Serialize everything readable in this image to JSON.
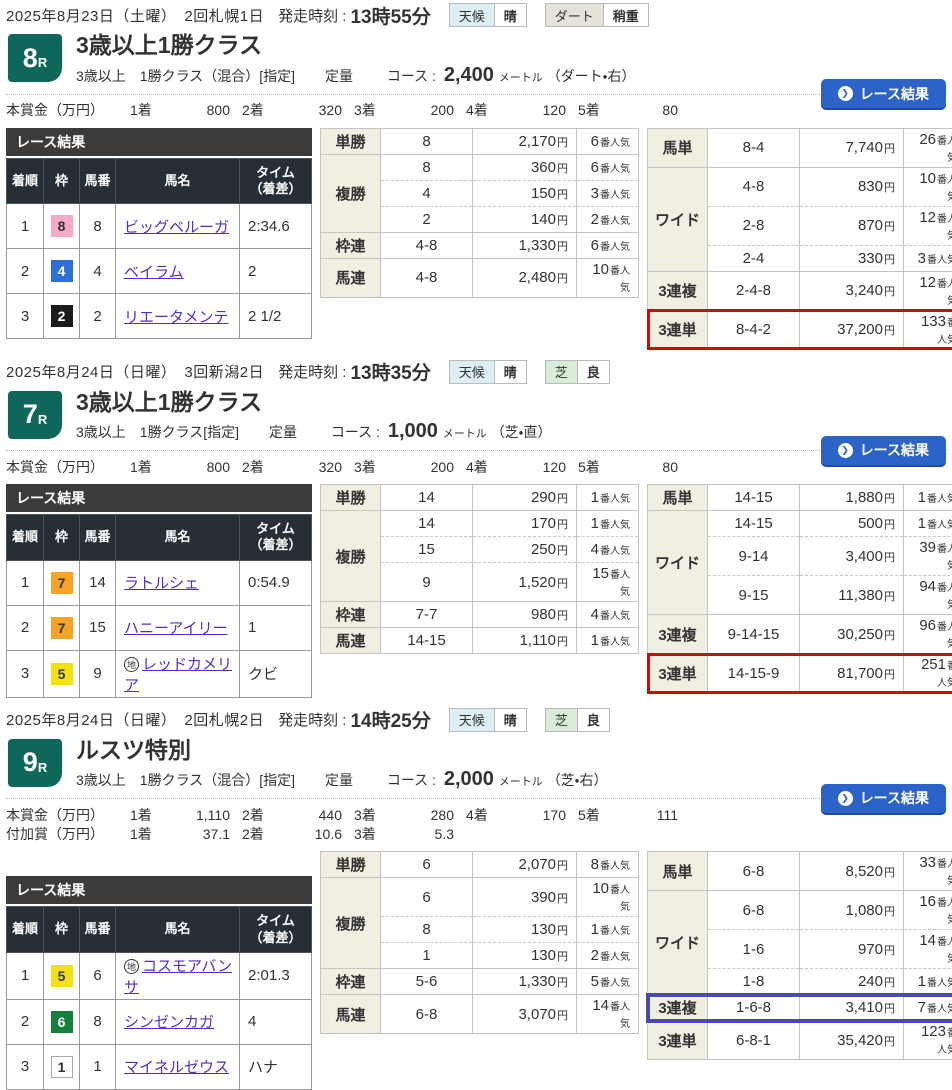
{
  "labels": {
    "start_time": "発走時刻 :",
    "weather": "天候",
    "course": "コース :",
    "results_caption": "レース結果",
    "results_button": "レース結果",
    "col_rank": "着順",
    "col_frame": "枠",
    "col_horse_no": "馬番",
    "col_horse": "馬名",
    "col_time_1": "タイム",
    "col_time_2": "（着差）",
    "yen": "円",
    "popularity": "番人気",
    "local_mark": "地"
  },
  "colors": {
    "button": "#2b63c8",
    "highlight_red": "#cf0a0a",
    "highlight_blue": "#4a4aad",
    "race_no_bg": "#0f665a",
    "link": "#5a2bbf",
    "frame_colors": {
      "1": {
        "bg": "#ffffff",
        "fg": "#333333",
        "border": "#aaaaaa"
      },
      "2": {
        "bg": "#1b1b1b",
        "fg": "#ffffff",
        "border": "#1b1b1b"
      },
      "4": {
        "bg": "#2e6fd6",
        "fg": "#ffffff",
        "border": "#2e6fd6"
      },
      "5": {
        "bg": "#f2e114",
        "fg": "#333333",
        "border": "#f2e114"
      },
      "6": {
        "bg": "#15803c",
        "fg": "#ffffff",
        "border": "#15803c"
      },
      "7": {
        "bg": "#f7a326",
        "fg": "#333333",
        "border": "#f7a326"
      },
      "8": {
        "bg": "#f6a9c8",
        "fg": "#333333",
        "border": "#f6a9c8"
      }
    }
  },
  "races": [
    {
      "date_line": "2025年8月23日（土曜）　2回札幌1日",
      "start_time": "13時55分",
      "weather": "晴",
      "surface": {
        "label": "ダート",
        "value": "稍重",
        "kind": "dirt"
      },
      "number": "8",
      "number_suffix": "R",
      "title": "3歳以上1勝クラス",
      "conditions": "3歳以上　1勝クラス（混合）[指定]",
      "weight_rule": "定量",
      "course": {
        "value": "2,400",
        "unit": "メートル",
        "detail": "（ダート・右）"
      },
      "prize_rows": [
        {
          "label": "本賞金（万円）",
          "entries": [
            [
              "1着",
              "800"
            ],
            [
              "2着",
              "320"
            ],
            [
              "3着",
              "200"
            ],
            [
              "4着",
              "120"
            ],
            [
              "5着",
              "80"
            ]
          ]
        }
      ],
      "results_offset": false,
      "results": [
        {
          "rank": "1",
          "frame": "8",
          "horse_no": "8",
          "name": "ビッグベルーガ",
          "local": false,
          "time": "2:34.6"
        },
        {
          "rank": "2",
          "frame": "4",
          "horse_no": "4",
          "name": "ベイラム",
          "local": false,
          "time": "2"
        },
        {
          "rank": "3",
          "frame": "2",
          "horse_no": "2",
          "name": "リエータメンテ",
          "local": false,
          "time": "2 1/2"
        }
      ],
      "payouts_left": [
        {
          "type": "単勝",
          "highlight": null,
          "rows": [
            {
              "combo": "8",
              "yen": "2,170",
              "pop": "6"
            }
          ]
        },
        {
          "type": "複勝",
          "highlight": null,
          "rows": [
            {
              "combo": "8",
              "yen": "360",
              "pop": "6"
            },
            {
              "combo": "4",
              "yen": "150",
              "pop": "3"
            },
            {
              "combo": "2",
              "yen": "140",
              "pop": "2"
            }
          ]
        },
        {
          "type": "枠連",
          "highlight": null,
          "rows": [
            {
              "combo": "4-8",
              "yen": "1,330",
              "pop": "6"
            }
          ]
        },
        {
          "type": "馬連",
          "highlight": null,
          "rows": [
            {
              "combo": "4-8",
              "yen": "2,480",
              "pop": "10"
            }
          ]
        }
      ],
      "payouts_right": [
        {
          "type": "馬単",
          "highlight": null,
          "rows": [
            {
              "combo": "8-4",
              "yen": "7,740",
              "pop": "26"
            }
          ]
        },
        {
          "type": "ワイド",
          "highlight": null,
          "rows": [
            {
              "combo": "4-8",
              "yen": "830",
              "pop": "10"
            },
            {
              "combo": "2-8",
              "yen": "870",
              "pop": "12"
            },
            {
              "combo": "2-4",
              "yen": "330",
              "pop": "3"
            }
          ]
        },
        {
          "type": "3連複",
          "highlight": null,
          "rows": [
            {
              "combo": "2-4-8",
              "yen": "3,240",
              "pop": "12"
            }
          ]
        },
        {
          "type": "3連単",
          "highlight": "red",
          "rows": [
            {
              "combo": "8-4-2",
              "yen": "37,200",
              "pop": "133"
            }
          ]
        }
      ]
    },
    {
      "date_line": "2025年8月24日（日曜）　3回新潟2日",
      "start_time": "13時35分",
      "weather": "晴",
      "surface": {
        "label": "芝",
        "value": "良",
        "kind": "turf"
      },
      "number": "7",
      "number_suffix": "R",
      "title": "3歳以上1勝クラス",
      "conditions": "3歳以上　1勝クラス[指定]",
      "weight_rule": "定量",
      "course": {
        "value": "1,000",
        "unit": "メートル",
        "detail": "（芝・直）"
      },
      "prize_rows": [
        {
          "label": "本賞金（万円）",
          "entries": [
            [
              "1着",
              "800"
            ],
            [
              "2着",
              "320"
            ],
            [
              "3着",
              "200"
            ],
            [
              "4着",
              "120"
            ],
            [
              "5着",
              "80"
            ]
          ]
        }
      ],
      "results_offset": false,
      "results": [
        {
          "rank": "1",
          "frame": "7",
          "horse_no": "14",
          "name": "ラトルシェ",
          "local": false,
          "time": "0:54.9"
        },
        {
          "rank": "2",
          "frame": "7",
          "horse_no": "15",
          "name": "ハニーアイリー",
          "local": false,
          "time": "1"
        },
        {
          "rank": "3",
          "frame": "5",
          "horse_no": "9",
          "name": "レッドカメリア",
          "local": true,
          "time": "クビ"
        }
      ],
      "payouts_left": [
        {
          "type": "単勝",
          "highlight": null,
          "rows": [
            {
              "combo": "14",
              "yen": "290",
              "pop": "1"
            }
          ]
        },
        {
          "type": "複勝",
          "highlight": null,
          "rows": [
            {
              "combo": "14",
              "yen": "170",
              "pop": "1"
            },
            {
              "combo": "15",
              "yen": "250",
              "pop": "4"
            },
            {
              "combo": "9",
              "yen": "1,520",
              "pop": "15"
            }
          ]
        },
        {
          "type": "枠連",
          "highlight": null,
          "rows": [
            {
              "combo": "7-7",
              "yen": "980",
              "pop": "4"
            }
          ]
        },
        {
          "type": "馬連",
          "highlight": null,
          "rows": [
            {
              "combo": "14-15",
              "yen": "1,110",
              "pop": "1"
            }
          ]
        }
      ],
      "payouts_right": [
        {
          "type": "馬単",
          "highlight": null,
          "rows": [
            {
              "combo": "14-15",
              "yen": "1,880",
              "pop": "1"
            }
          ]
        },
        {
          "type": "ワイド",
          "highlight": null,
          "rows": [
            {
              "combo": "14-15",
              "yen": "500",
              "pop": "1"
            },
            {
              "combo": "9-14",
              "yen": "3,400",
              "pop": "39"
            },
            {
              "combo": "9-15",
              "yen": "11,380",
              "pop": "94"
            }
          ]
        },
        {
          "type": "3連複",
          "highlight": null,
          "rows": [
            {
              "combo": "9-14-15",
              "yen": "30,250",
              "pop": "96"
            }
          ]
        },
        {
          "type": "3連単",
          "highlight": "red",
          "rows": [
            {
              "combo": "14-15-9",
              "yen": "81,700",
              "pop": "251"
            }
          ]
        }
      ]
    },
    {
      "date_line": "2025年8月24日（日曜）　2回札幌2日",
      "start_time": "14時25分",
      "weather": "晴",
      "surface": {
        "label": "芝",
        "value": "良",
        "kind": "turf"
      },
      "number": "9",
      "number_suffix": "R",
      "title": "ルスツ特別",
      "conditions": "3歳以上　1勝クラス（混合）[指定]",
      "weight_rule": "定量",
      "course": {
        "value": "2,000",
        "unit": "メートル",
        "detail": "（芝・右）"
      },
      "prize_rows": [
        {
          "label": "本賞金（万円）",
          "entries": [
            [
              "1着",
              "1,110"
            ],
            [
              "2着",
              "440"
            ],
            [
              "3着",
              "280"
            ],
            [
              "4着",
              "170"
            ],
            [
              "5着",
              "111"
            ]
          ]
        },
        {
          "label": "付加賞（万円）",
          "entries": [
            [
              "1着",
              "37.1"
            ],
            [
              "2着",
              "10.6"
            ],
            [
              "3着",
              "5.3"
            ]
          ]
        }
      ],
      "results_offset": true,
      "results": [
        {
          "rank": "1",
          "frame": "5",
          "horse_no": "6",
          "name": "コスモアバンサ",
          "local": true,
          "time": "2:01.3"
        },
        {
          "rank": "2",
          "frame": "6",
          "horse_no": "8",
          "name": "シンゼンカガ",
          "local": false,
          "time": "4"
        },
        {
          "rank": "3",
          "frame": "1",
          "horse_no": "1",
          "name": "マイネルゼウス",
          "local": false,
          "time": "ハナ"
        }
      ],
      "payouts_left": [
        {
          "type": "単勝",
          "highlight": null,
          "rows": [
            {
              "combo": "6",
              "yen": "2,070",
              "pop": "8"
            }
          ]
        },
        {
          "type": "複勝",
          "highlight": null,
          "rows": [
            {
              "combo": "6",
              "yen": "390",
              "pop": "10"
            },
            {
              "combo": "8",
              "yen": "130",
              "pop": "1"
            },
            {
              "combo": "1",
              "yen": "130",
              "pop": "2"
            }
          ]
        },
        {
          "type": "枠連",
          "highlight": null,
          "rows": [
            {
              "combo": "5-6",
              "yen": "1,330",
              "pop": "5"
            }
          ]
        },
        {
          "type": "馬連",
          "highlight": null,
          "rows": [
            {
              "combo": "6-8",
              "yen": "3,070",
              "pop": "14"
            }
          ]
        }
      ],
      "payouts_right": [
        {
          "type": "馬単",
          "highlight": null,
          "rows": [
            {
              "combo": "6-8",
              "yen": "8,520",
              "pop": "33"
            }
          ]
        },
        {
          "type": "ワイド",
          "highlight": null,
          "rows": [
            {
              "combo": "6-8",
              "yen": "1,080",
              "pop": "16"
            },
            {
              "combo": "1-6",
              "yen": "970",
              "pop": "14"
            },
            {
              "combo": "1-8",
              "yen": "240",
              "pop": "1"
            }
          ]
        },
        {
          "type": "3連複",
          "highlight": "blue",
          "rows": [
            {
              "combo": "1-6-8",
              "yen": "3,410",
              "pop": "7"
            }
          ]
        },
        {
          "type": "3連単",
          "highlight": null,
          "rows": [
            {
              "combo": "6-8-1",
              "yen": "35,420",
              "pop": "123"
            }
          ]
        }
      ]
    }
  ]
}
